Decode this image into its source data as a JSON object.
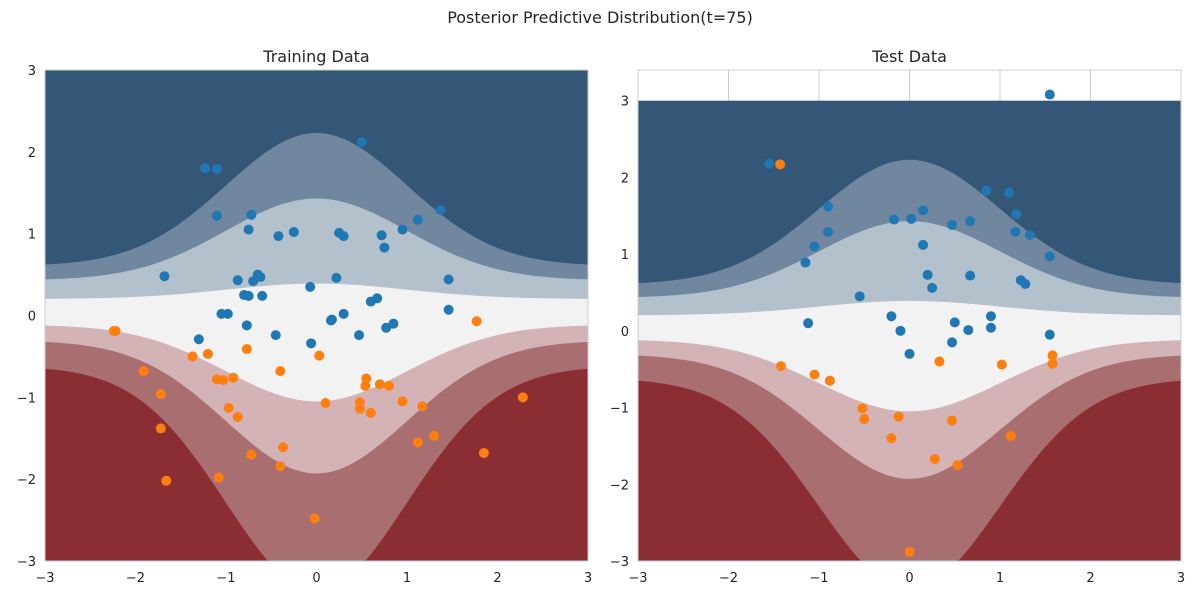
{
  "figure": {
    "suptitle": "Posterior Predictive Distribution(t=75)"
  },
  "colors": {
    "class0": "#1f77b4",
    "class1": "#ff7f0e",
    "contour_levels": [
      "#8b2e33",
      "#a96f70",
      "#d3b3b5",
      "#f2f2f2",
      "#b3c1cd",
      "#71879f",
      "#345778"
    ]
  },
  "chart_data": [
    {
      "type": "scatter",
      "title": "Training Data",
      "xlim": [
        -3,
        3
      ],
      "ylim": [
        -3,
        3
      ],
      "xticks": [
        "−3",
        "−2",
        "−1",
        "0",
        "1",
        "2",
        "3"
      ],
      "yticks": [
        "−3",
        "−2",
        "−1",
        "0",
        "1",
        "2",
        "3"
      ],
      "grid": false,
      "background": "filled-contour",
      "series": [
        {
          "points": [
            [
              -1.23,
              1.8
            ],
            [
              -1.1,
              1.79
            ],
            [
              0.5,
              2.12
            ],
            [
              -1.1,
              1.22
            ],
            [
              -0.72,
              1.23
            ],
            [
              -0.75,
              1.05
            ],
            [
              -0.42,
              0.97
            ],
            [
              -0.25,
              1.02
            ],
            [
              0.25,
              1.01
            ],
            [
              0.3,
              0.97
            ],
            [
              0.72,
              0.98
            ],
            [
              0.75,
              0.83
            ],
            [
              0.95,
              1.05
            ],
            [
              1.12,
              1.17
            ],
            [
              1.37,
              1.29
            ],
            [
              1.46,
              0.44
            ],
            [
              1.46,
              0.07
            ],
            [
              -1.68,
              0.48
            ],
            [
              -0.65,
              0.5
            ],
            [
              -0.62,
              0.47
            ],
            [
              -0.7,
              0.42
            ],
            [
              -0.87,
              0.43
            ],
            [
              -0.8,
              0.25
            ],
            [
              -0.75,
              0.24
            ],
            [
              -0.6,
              0.24
            ],
            [
              0.22,
              0.46
            ],
            [
              -0.07,
              0.35
            ],
            [
              0.6,
              0.17
            ],
            [
              0.67,
              0.21
            ],
            [
              0.3,
              0.02
            ],
            [
              0.17,
              -0.05
            ],
            [
              0.16,
              -0.06
            ],
            [
              -1.05,
              0.02
            ],
            [
              -0.98,
              0.02
            ],
            [
              -0.77,
              -0.12
            ],
            [
              -0.45,
              -0.24
            ],
            [
              -1.3,
              -0.29
            ],
            [
              -0.06,
              -0.34
            ],
            [
              0.47,
              -0.24
            ],
            [
              0.77,
              -0.15
            ],
            [
              0.85,
              -0.1
            ]
          ]
        },
        {
          "points": [
            [
              -2.22,
              -0.19
            ],
            [
              -2.24,
              -0.19
            ],
            [
              -1.91,
              -0.68
            ],
            [
              -1.72,
              -0.96
            ],
            [
              -1.72,
              -1.38
            ],
            [
              -1.66,
              -2.02
            ],
            [
              -1.37,
              -0.5
            ],
            [
              -1.2,
              -0.47
            ],
            [
              -1.1,
              -0.78
            ],
            [
              -1.03,
              -0.79
            ],
            [
              -0.92,
              -0.76
            ],
            [
              -0.97,
              -1.13
            ],
            [
              -0.87,
              -1.24
            ],
            [
              -1.08,
              -1.98
            ],
            [
              -0.77,
              -0.41
            ],
            [
              -0.72,
              -1.7
            ],
            [
              -0.4,
              -0.68
            ],
            [
              -0.37,
              -1.61
            ],
            [
              -0.4,
              -1.84
            ],
            [
              0.03,
              -0.49
            ],
            [
              0.1,
              -1.07
            ],
            [
              -0.02,
              -2.48
            ],
            [
              0.48,
              -1.14
            ],
            [
              0.48,
              -1.06
            ],
            [
              0.54,
              -0.86
            ],
            [
              0.55,
              -0.77
            ],
            [
              0.6,
              -1.19
            ],
            [
              0.7,
              -0.84
            ],
            [
              0.8,
              -0.86
            ],
            [
              0.95,
              -1.05
            ],
            [
              1.12,
              -1.55
            ],
            [
              1.17,
              -1.11
            ],
            [
              1.3,
              -1.47
            ],
            [
              1.77,
              -0.07
            ],
            [
              1.85,
              -1.68
            ],
            [
              2.28,
              -1.0
            ]
          ]
        }
      ]
    },
    {
      "type": "scatter",
      "title": "Test Data",
      "xlim": [
        -3,
        3
      ],
      "ylim": [
        -3,
        3.4
      ],
      "xticks": [
        "−3",
        "−2",
        "−1",
        "0",
        "1",
        "2",
        "3"
      ],
      "yticks": [
        "−3",
        "−2",
        "−1",
        "0",
        "1",
        "2",
        "3"
      ],
      "grid": false,
      "background": "filled-contour",
      "series": [
        {
          "points": [
            [
              1.55,
              3.08
            ],
            [
              -1.55,
              2.18
            ],
            [
              0.85,
              1.83
            ],
            [
              1.1,
              1.8
            ],
            [
              -0.9,
              1.62
            ],
            [
              0.15,
              1.57
            ],
            [
              1.18,
              1.52
            ],
            [
              -0.17,
              1.45
            ],
            [
              0.02,
              1.46
            ],
            [
              0.67,
              1.43
            ],
            [
              0.47,
              1.38
            ],
            [
              -0.9,
              1.29
            ],
            [
              1.17,
              1.29
            ],
            [
              1.33,
              1.25
            ],
            [
              -1.05,
              1.1
            ],
            [
              0.15,
              1.12
            ],
            [
              1.55,
              0.97
            ],
            [
              -1.15,
              0.89
            ],
            [
              0.2,
              0.73
            ],
            [
              0.67,
              0.72
            ],
            [
              1.23,
              0.66
            ],
            [
              1.28,
              0.61
            ],
            [
              0.25,
              0.56
            ],
            [
              -0.55,
              0.45
            ],
            [
              -0.2,
              0.19
            ],
            [
              0.9,
              0.19
            ],
            [
              -1.12,
              0.1
            ],
            [
              0.5,
              0.11
            ],
            [
              -0.1,
              0.0
            ],
            [
              0.65,
              0.01
            ],
            [
              0.9,
              0.04
            ],
            [
              1.55,
              -0.05
            ],
            [
              0.47,
              -0.15
            ],
            [
              0.0,
              -0.3
            ]
          ]
        },
        {
          "points": [
            [
              -1.43,
              2.17
            ],
            [
              -1.42,
              -0.46
            ],
            [
              -1.05,
              -0.57
            ],
            [
              -0.88,
              -0.65
            ],
            [
              -0.52,
              -1.01
            ],
            [
              -0.5,
              -1.15
            ],
            [
              -0.12,
              -1.12
            ],
            [
              -0.2,
              -1.4
            ],
            [
              0.33,
              -0.4
            ],
            [
              0.47,
              -1.17
            ],
            [
              0.28,
              -1.67
            ],
            [
              0.53,
              -1.75
            ],
            [
              1.02,
              -0.44
            ],
            [
              1.58,
              -0.32
            ],
            [
              1.58,
              -0.43
            ],
            [
              1.12,
              -1.37
            ],
            [
              0.0,
              -2.88
            ]
          ]
        }
      ]
    }
  ]
}
